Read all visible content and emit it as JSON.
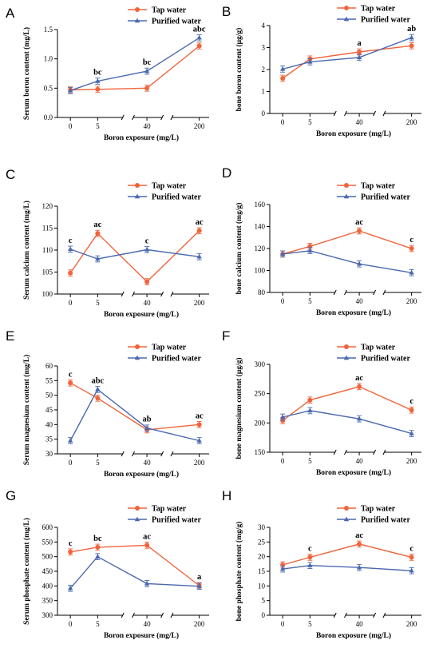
{
  "figure": {
    "legend": {
      "tap": "Tap water",
      "purified": "Purified water"
    },
    "colors": {
      "tap": "#f0643c",
      "purified": "#4a68b0"
    }
  },
  "chart_data": [
    {
      "type": "line",
      "letter": "A",
      "ylabel": "Serum boron content (mg/L)",
      "xlabel": "Boron exposure (mg/L)",
      "categories": [
        "0",
        "5",
        "40",
        "200"
      ],
      "ylim": [
        0,
        1.5
      ],
      "yticks": [
        "0.0",
        "0.5",
        "1.0",
        "1.5"
      ],
      "series": [
        {
          "name": "Tap water",
          "values": [
            0.47,
            0.48,
            0.5,
            1.22
          ]
        },
        {
          "name": "Purified water",
          "values": [
            0.46,
            0.62,
            0.79,
            1.36
          ]
        }
      ],
      "annotations": [
        {
          "category": "5",
          "text": "bc"
        },
        {
          "category": "40",
          "text": "bc"
        },
        {
          "category": "200",
          "text": "abc"
        }
      ]
    },
    {
      "type": "line",
      "letter": "B",
      "ylabel": "bone boron content (μg/g)",
      "xlabel": "Boron exposure (mg/L)",
      "categories": [
        "0",
        "5",
        "40",
        "200"
      ],
      "ylim": [
        0,
        4
      ],
      "yticks": [
        "0",
        "1",
        "2",
        "3",
        "4"
      ],
      "series": [
        {
          "name": "Tap water",
          "values": [
            1.6,
            2.48,
            2.8,
            3.08
          ]
        },
        {
          "name": "Purified water",
          "values": [
            2.02,
            2.35,
            2.55,
            3.45
          ]
        }
      ],
      "annotations": [
        {
          "category": "40",
          "text": "a"
        },
        {
          "category": "200",
          "text": "ab"
        }
      ]
    },
    {
      "type": "line",
      "letter": "C",
      "ylabel": "Serum calcium content (mg/L)",
      "xlabel": "Boron exposure (mg/L)",
      "categories": [
        "0",
        "5",
        "40",
        "200"
      ],
      "ylim": [
        100,
        120
      ],
      "yticks": [
        "100",
        "105",
        "110",
        "115",
        "120"
      ],
      "series": [
        {
          "name": "Tap water",
          "values": [
            104.8,
            113.8,
            102.8,
            114.4
          ]
        },
        {
          "name": "Purified water",
          "values": [
            110.2,
            108.0,
            110.1,
            108.5
          ]
        }
      ],
      "annotations": [
        {
          "category": "0",
          "text": "c"
        },
        {
          "category": "5",
          "text": "ac"
        },
        {
          "category": "40",
          "text": "c"
        },
        {
          "category": "200",
          "text": "ac"
        }
      ]
    },
    {
      "type": "line",
      "letter": "D",
      "ylabel": "bone calcium content (mg/g)",
      "xlabel": "Boron exposure (mg/L)",
      "categories": [
        "0",
        "5",
        "40",
        "200"
      ],
      "ylim": [
        80,
        160
      ],
      "yticks": [
        "80",
        "100",
        "120",
        "140",
        "160"
      ],
      "series": [
        {
          "name": "Tap water",
          "values": [
            115,
            122,
            136,
            120
          ]
        },
        {
          "name": "Purified water",
          "values": [
            115,
            118,
            106,
            98
          ]
        }
      ],
      "annotations": [
        {
          "category": "40",
          "text": "ac"
        },
        {
          "category": "200",
          "text": "c"
        }
      ]
    },
    {
      "type": "line",
      "letter": "E",
      "ylabel": "Serum magnesium content (mg/L)",
      "xlabel": "Boron exposure (mg/L)",
      "categories": [
        "0",
        "5",
        "40",
        "200"
      ],
      "ylim": [
        30,
        60
      ],
      "yticks": [
        "30",
        "35",
        "40",
        "45",
        "50",
        "55",
        "60"
      ],
      "series": [
        {
          "name": "Tap water",
          "values": [
            54.2,
            49.0,
            38.2,
            40.0
          ]
        },
        {
          "name": "Purified water",
          "values": [
            34.5,
            52.0,
            38.8,
            34.5
          ]
        }
      ],
      "annotations": [
        {
          "category": "0",
          "text": "c"
        },
        {
          "category": "5",
          "text": "abc"
        },
        {
          "category": "40",
          "text": "ab"
        },
        {
          "category": "200",
          "text": "ac"
        }
      ]
    },
    {
      "type": "line",
      "letter": "F",
      "ylabel": "bone magnesium content (μg/g)",
      "xlabel": "Boron exposure (mg/L)",
      "categories": [
        "0",
        "5",
        "40",
        "200"
      ],
      "ylim": [
        150,
        300
      ],
      "yticks": [
        "150",
        "200",
        "250",
        "300"
      ],
      "series": [
        {
          "name": "Tap water",
          "values": [
            204,
            239,
            262,
            222
          ]
        },
        {
          "name": "Purified water",
          "values": [
            210,
            221,
            207,
            182
          ]
        }
      ],
      "annotations": [
        {
          "category": "40",
          "text": "ac"
        },
        {
          "category": "200",
          "text": "c"
        }
      ]
    },
    {
      "type": "line",
      "letter": "G",
      "ylabel": "Serum phosphate content (mg/L)",
      "xlabel": "Boron exposure (mg/L)",
      "categories": [
        "0",
        "5",
        "40",
        "200"
      ],
      "ylim": [
        300,
        600
      ],
      "yticks": [
        "300",
        "350",
        "400",
        "450",
        "500",
        "550",
        "600"
      ],
      "series": [
        {
          "name": "Tap water",
          "values": [
            516,
            532,
            539,
            401
          ]
        },
        {
          "name": "Purified water",
          "values": [
            392,
            500,
            408,
            399
          ]
        }
      ],
      "annotations": [
        {
          "category": "0",
          "text": "c"
        },
        {
          "category": "5",
          "text": "bc"
        },
        {
          "category": "40",
          "text": "ac"
        },
        {
          "category": "200",
          "text": "a"
        }
      ]
    },
    {
      "type": "line",
      "letter": "H",
      "ylabel": "bone phosphate content (mg/g)",
      "xlabel": "Boron exposure (mg/L)",
      "categories": [
        "0",
        "5",
        "40",
        "200"
      ],
      "ylim": [
        0,
        30
      ],
      "yticks": [
        "0",
        "5",
        "10",
        "15",
        "20",
        "25",
        "30"
      ],
      "series": [
        {
          "name": "Tap water",
          "values": [
            17.2,
            19.8,
            24.3,
            19.8
          ]
        },
        {
          "name": "Purified water",
          "values": [
            15.8,
            17.0,
            16.3,
            15.2
          ]
        }
      ],
      "annotations": [
        {
          "category": "5",
          "text": "c"
        },
        {
          "category": "40",
          "text": "ac"
        },
        {
          "category": "200",
          "text": "c"
        }
      ]
    }
  ]
}
